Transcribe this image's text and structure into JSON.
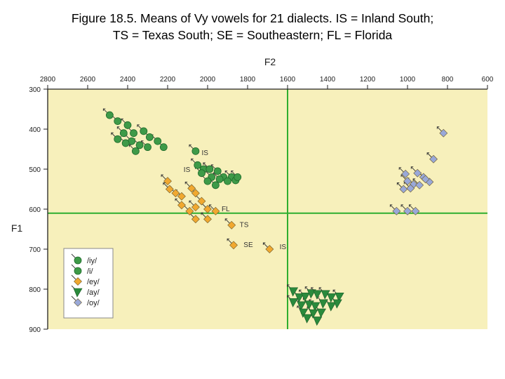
{
  "title_lines": [
    "Figure 18.5. Means of Vy vowels for 21 dialects. IS = Inland South;",
    "TS = Texas South; SE = Southeastern; FL = Florida"
  ],
  "chart_data": {
    "type": "scatter",
    "title": "Figure 18.5. Means of Vy vowels for 21 dialects. IS = Inland South; TS = Texas South; SE = Southeastern; FL = Florida",
    "xlabel": "F2",
    "ylabel": "F1",
    "x_reversed": true,
    "y_reversed": true,
    "xlim": [
      600,
      2800
    ],
    "ylim": [
      300,
      900
    ],
    "x_ticks": [
      "2800",
      "2600",
      "2400",
      "2200",
      "2000",
      "1800",
      "1600",
      "1400",
      "1200",
      "1000",
      "800",
      "600"
    ],
    "y_ticks": [
      "300",
      "400",
      "500",
      "600",
      "700",
      "800",
      "900"
    ],
    "reference_lines": {
      "vertical_x": 1600,
      "horizontal_y": 610
    },
    "background": "#f7f0bb",
    "legend_position": "bottom-left",
    "series": [
      {
        "name": "/iy/",
        "marker": "circle",
        "color": "#3e9a48",
        "points": [
          [
            2490,
            365
          ],
          [
            2450,
            380
          ],
          [
            2400,
            390
          ],
          [
            2370,
            410
          ],
          [
            2320,
            405
          ],
          [
            2290,
            420
          ],
          [
            2420,
            410
          ],
          [
            2380,
            430
          ],
          [
            2340,
            440
          ],
          [
            2300,
            445
          ],
          [
            2250,
            430
          ],
          [
            2220,
            445
          ],
          [
            2450,
            425
          ],
          [
            2410,
            435
          ],
          [
            2360,
            455
          ]
        ]
      },
      {
        "name": "/i/",
        "marker": "circle",
        "color": "#3e9a48",
        "points": [
          [
            2060,
            455
          ],
          [
            2050,
            490
          ],
          [
            2020,
            500
          ],
          [
            1990,
            500
          ],
          [
            1950,
            505
          ],
          [
            1920,
            520
          ],
          [
            1880,
            520
          ],
          [
            1860,
            528
          ],
          [
            1980,
            520
          ],
          [
            1940,
            525
          ],
          [
            2000,
            530
          ],
          [
            1960,
            540
          ],
          [
            1900,
            530
          ],
          [
            1850,
            520
          ],
          [
            2030,
            510
          ]
        ]
      },
      {
        "name": "/ey/",
        "marker": "diamond",
        "color": "#f0a830",
        "points": [
          [
            2200,
            530
          ],
          [
            2190,
            550
          ],
          [
            2160,
            560
          ],
          [
            2130,
            568
          ],
          [
            2080,
            548
          ],
          [
            2060,
            560
          ],
          [
            2030,
            580
          ],
          [
            2060,
            595
          ],
          [
            2000,
            600
          ],
          [
            2130,
            590
          ],
          [
            2090,
            605
          ],
          [
            2060,
            625
          ],
          [
            2000,
            625
          ],
          [
            1960,
            605
          ],
          [
            1880,
            640
          ],
          [
            1870,
            690
          ],
          [
            1690,
            700
          ]
        ]
      },
      {
        "name": "/ay/",
        "marker": "flag",
        "color": "#2a8a3c",
        "points": [
          [
            1570,
            805
          ],
          [
            1540,
            820
          ],
          [
            1510,
            818
          ],
          [
            1480,
            810
          ],
          [
            1450,
            812
          ],
          [
            1410,
            812
          ],
          [
            1380,
            820
          ],
          [
            1340,
            818
          ],
          [
            1570,
            832
          ],
          [
            1530,
            840
          ],
          [
            1490,
            838
          ],
          [
            1460,
            842
          ],
          [
            1420,
            835
          ],
          [
            1380,
            842
          ],
          [
            1350,
            835
          ],
          [
            1520,
            858
          ],
          [
            1470,
            860
          ],
          [
            1430,
            858
          ],
          [
            1500,
            872
          ],
          [
            1450,
            878
          ]
        ]
      },
      {
        "name": "/oy/",
        "marker": "diamond",
        "color": "#99a8d8",
        "points": [
          [
            820,
            410
          ],
          [
            870,
            475
          ],
          [
            1010,
            512
          ],
          [
            950,
            510
          ],
          [
            920,
            520
          ],
          [
            890,
            532
          ],
          [
            1000,
            530
          ],
          [
            970,
            538
          ],
          [
            940,
            540
          ],
          [
            910,
            525
          ],
          [
            1020,
            550
          ],
          [
            985,
            548
          ],
          [
            1055,
            605
          ],
          [
            1000,
            605
          ],
          [
            960,
            605
          ]
        ]
      }
    ],
    "annotations": [
      {
        "text": "IS",
        "x": 2030,
        "y": 458
      },
      {
        "text": "IS",
        "x": 2120,
        "y": 500
      },
      {
        "text": "FL",
        "x": 1930,
        "y": 598
      },
      {
        "text": "TS",
        "x": 1840,
        "y": 638
      },
      {
        "text": "SE",
        "x": 1820,
        "y": 688
      },
      {
        "text": "IS",
        "x": 1640,
        "y": 693
      }
    ]
  }
}
